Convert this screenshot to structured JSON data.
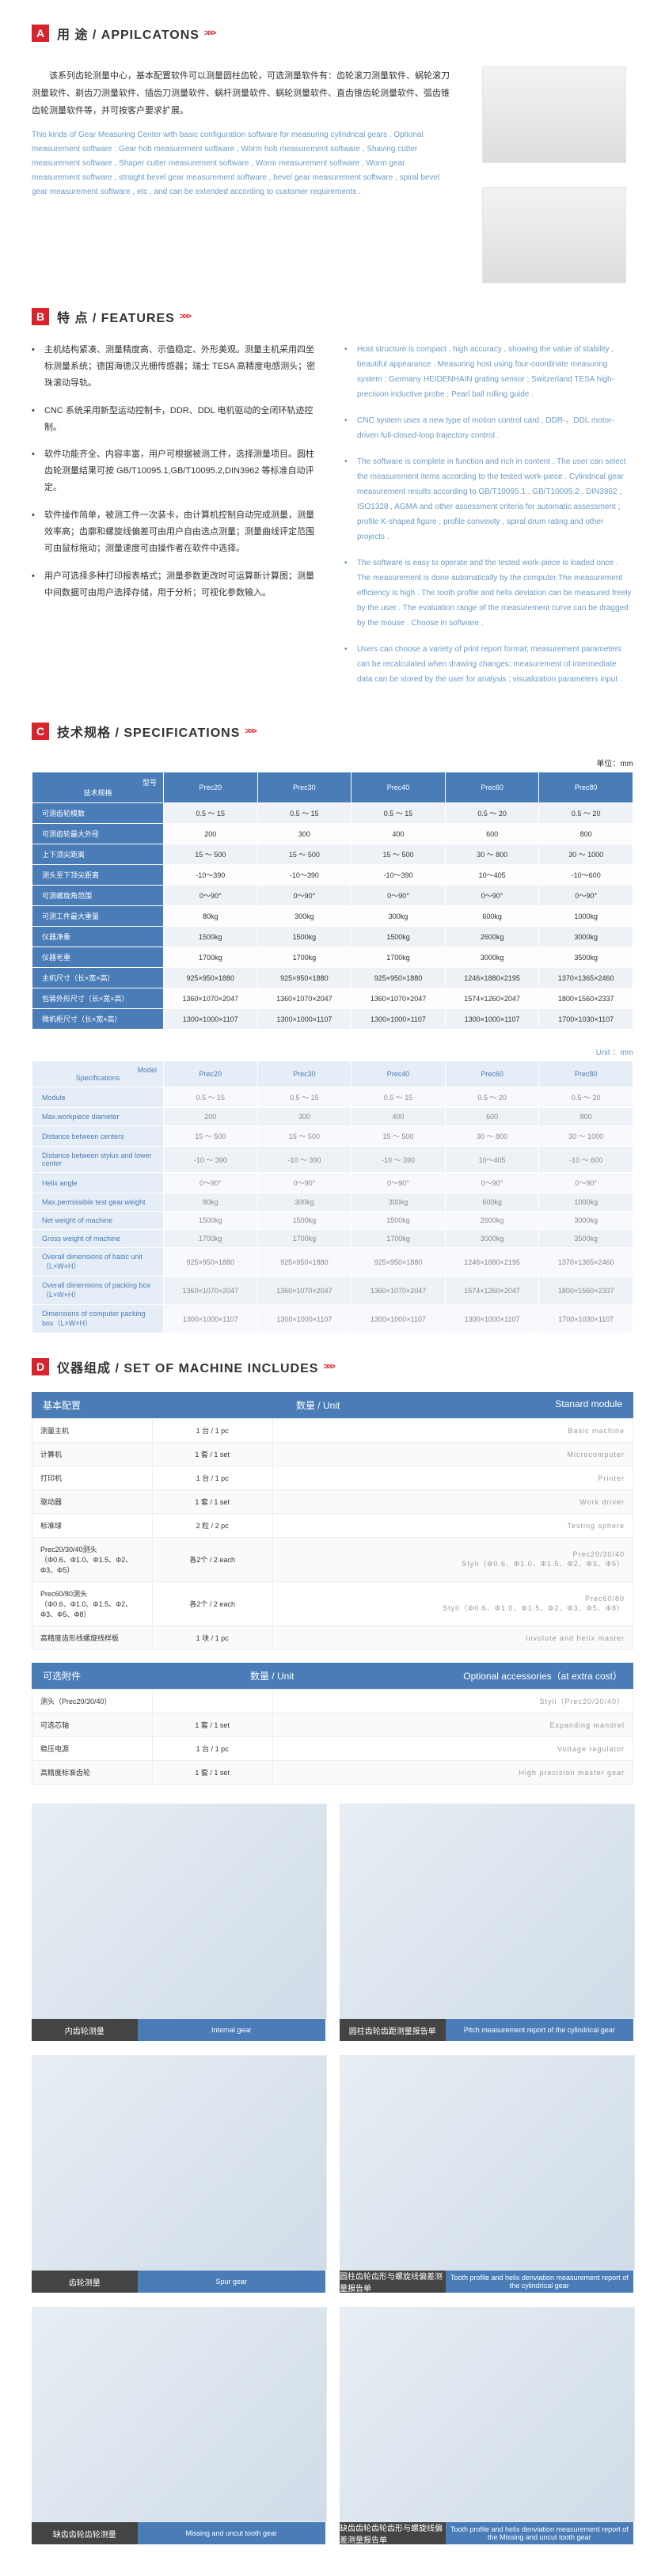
{
  "sectA": {
    "badge": "A",
    "title": "用 途 / APPILCATONS",
    "arr": ">>>"
  },
  "sectB": {
    "badge": "B",
    "title": "特 点 / FEATURES",
    "arr": ">>>"
  },
  "sectC": {
    "badge": "C",
    "title": "技术规格 / SPECIFICATIONS",
    "arr": ">>>"
  },
  "sectD": {
    "badge": "D",
    "title": "仪器组成 / SET OF MACHINE INCLUDES",
    "arr": ">>>"
  },
  "appCn": "该系列齿轮测量中心，基本配置软件可以测量圆柱齿轮，可选测量软件有：齿轮滚刀测量软件、蜗轮滚刀测量软件、剃齿刀测量软件、插齿刀测量软件、蜗杆测量软件、蜗轮测量软件、直齿锥齿轮测量软件、弧齿锥齿轮测量软件等，并可按客户要求扩展。",
  "appEn": "This kinds of Gear Measuring Center with basic configuration software for measuring cylindrical gears . Optional measurement software : Gear hob measurement software , Worm hob measurement software , Shaving cutter measurement software , Shaper cutter measurement software , Worm measurement software , Worm gear measurement software , straight bevel gear measurement software , bevel gear measurement software , spiral bevel gear measurement software , etc , and can be extended according to customer requirements .",
  "featCn": [
    "主机结构紧凑、测量精度高、示值稳定、外形美观。测量主机采用四坐标测量系统；德国海德汉光栅传感器；瑞士 TESA 高精度电感测头；密珠滚动导轨。",
    "CNC 系统采用新型运动控制卡，DDR、DDL 电机驱动的全闭环轨迹控制。",
    "软件功能齐全、内容丰富，用户可根据被测工件，选择测量项目。圆柱齿轮测量结果可按 GB/T10095.1,GB/T10095.2,DIN3962 等标准自动评定。",
    "软件操作简单，被测工件一次装卡，由计算机控制自动完成测量，测量效率高；齿廓和螺旋线偏差可由用户自由选点测量；测量曲线评定范围可由鼠标拖动；测量速度可由操作者在软件中选择。",
    "用户可选择多种打印报表格式；测量参数更改时可运算新计算图；测量中间数据可由用户选择存储，用于分析；可视化参数输入。"
  ],
  "featEn": [
    "Host structure is compact , high accuracy , showing the value of stability , beautiful appearance . Measuring host using four-coordinate measuring system ; Germany HEIDENHAIN grating sensor ; Switzerland TESA high-precision inductive probe ; Pearl ball rolling guide .",
    "CNC system uses a new type of motion control card , DDR-，DDL motor-driven full-closed-loop trajectory control .",
    "The software is complete in function and rich in content . The user can select the measurement items according to the tested work-piece . Cylindrical gear measurement results according to GB/T10095.1 , GB/T10095.2 , DIN3962 , ISO1328 , AGMA and other assessment criteria for automatic assessment ; profile K-shaped figure , profile convexity , spiral drum rating and other projects .",
    "The software is easy to operate and the tested work-piece is loaded once . The measurement is done automatically by the computer.The measurement efficiency is high . The tooth profile and helix deviation can be measured freely by the user . The evaluation range of the measurement curve can be dragged by the mouse . Choose in software .",
    "Users can choose a variety of print report format; measurement parameters can be recalculated when drawing changes; measurement of intermediate data can be stored by the user for analysis ; visualization parameters input ."
  ],
  "unitCn": "单位：mm",
  "unitEn": "Unit ：mm",
  "spec1": {
    "cornerCn": "技术规格",
    "cornerMod": "型号",
    "cols": [
      "Prec20",
      "Prec30",
      "Prec40",
      "Prec60",
      "Prec80"
    ],
    "rows": [
      {
        "h": "可测齿轮模数",
        "c": [
          "0.5 ～ 15",
          "0.5 ～ 15",
          "0.5 ～ 15",
          "0.5 ～ 20",
          "0.5 ～ 20"
        ]
      },
      {
        "h": "可测齿轮最大外径",
        "c": [
          "200",
          "300",
          "400",
          "600",
          "800"
        ]
      },
      {
        "h": "上下顶尖距离",
        "c": [
          "15 ～ 500",
          "15 ～ 500",
          "15 ～ 500",
          "30 ～ 800",
          "30 ～ 1000"
        ]
      },
      {
        "h": "测头至下顶尖距离",
        "c": [
          "-10～390",
          "-10～390",
          "-10～390",
          "10～405",
          "-10～600"
        ]
      },
      {
        "h": "可测螺旋角范围",
        "c": [
          "0～90°",
          "0～90°",
          "0～90°",
          "0～90°",
          "0～90°"
        ]
      },
      {
        "h": "可测工件最大重量",
        "c": [
          "80kg",
          "300kg",
          "300kg",
          "600kg",
          "1000kg"
        ]
      },
      {
        "h": "仪器净重",
        "c": [
          "1500kg",
          "1500kg",
          "1500kg",
          "2600kg",
          "3000kg"
        ]
      },
      {
        "h": "仪器毛重",
        "c": [
          "1700kg",
          "1700kg",
          "1700kg",
          "3000kg",
          "3500kg"
        ]
      },
      {
        "h": "主机尺寸（长×宽×高）",
        "c": [
          "925×950×1880",
          "925×950×1880",
          "925×950×1880",
          "1246×1880×2195",
          "1370×1365×2460"
        ]
      },
      {
        "h": "包装外形尺寸（长×宽×高）",
        "c": [
          "1360×1070×2047",
          "1360×1070×2047",
          "1360×1070×2047",
          "1574×1260×2047",
          "1800×1560×2337"
        ]
      },
      {
        "h": "微机柜尺寸（长×宽×高）",
        "c": [
          "1300×1000×1107",
          "1300×1000×1107",
          "1300×1000×1107",
          "1300×1000×1107",
          "1700×1030×1107"
        ]
      }
    ]
  },
  "spec2": {
    "cornerSpec": "Specifications",
    "cornerMod": "Model",
    "cols": [
      "Prec20",
      "Prec30",
      "Prec40",
      "Prec60",
      "Prec80"
    ],
    "rows": [
      {
        "h": "Module",
        "c": [
          "0.5 ～ 15",
          "0.5 ～ 15",
          "0.5 ～ 15",
          "0.5 ～ 20",
          "0.5 ～ 20"
        ]
      },
      {
        "h": "Max.workpiece diameter",
        "c": [
          "200",
          "300",
          "400",
          "600",
          "800"
        ]
      },
      {
        "h": "Distance between centers",
        "c": [
          "15 ～ 500",
          "15 ～ 500",
          "15 ～ 500",
          "30 ～ 800",
          "30 ～ 1000"
        ]
      },
      {
        "h": "Distance between stylus and lower center",
        "c": [
          "-10 ～ 390",
          "-10 ～ 390",
          "-10 ～ 390",
          "10～405",
          "-10 ～ 600"
        ]
      },
      {
        "h": "Helix angle",
        "c": [
          "0～90°",
          "0～90°",
          "0～90°",
          "0～90°",
          "0～90°"
        ]
      },
      {
        "h": "Max.permissible test gear.weight",
        "c": [
          "80kg",
          "300kg",
          "300kg",
          "600kg",
          "1000kg"
        ]
      },
      {
        "h": "Net weight of machine",
        "c": [
          "1500kg",
          "1500kg",
          "1500kg",
          "2600kg",
          "3000kg"
        ]
      },
      {
        "h": "Gross weight of machine",
        "c": [
          "1700kg",
          "1700kg",
          "1700kg",
          "3000kg",
          "3500kg"
        ]
      },
      {
        "h": "Overall dimensions of basic unit（L×W×H）",
        "c": [
          "925×950×1880",
          "925×950×1880",
          "925×950×1880",
          "1246×1880×2195",
          "1370×1365×2460"
        ]
      },
      {
        "h": "Overall dimensions of packing box （L×W×H）",
        "c": [
          "1360×1070×2047",
          "1360×1070×2047",
          "1360×1070×2047",
          "1574×1260×2047",
          "1800×1560×2337"
        ]
      },
      {
        "h": "Dimensions of computer packing box（L×W×H）",
        "c": [
          "1300×1000×1107",
          "1300×1000×1107",
          "1300×1000×1107",
          "1300×1000×1107",
          "1700×1030×1107"
        ]
      }
    ]
  },
  "mod1": {
    "head": [
      "基本配置",
      "数量 / Unit",
      "Stanard module"
    ],
    "rows": [
      [
        "测量主机",
        "1 台 / 1 pc",
        "Basic machine"
      ],
      [
        "计算机",
        "1 套 / 1 set",
        "Microcomputer"
      ],
      [
        "打印机",
        "1 台 / 1 pc",
        "Printer"
      ],
      [
        "驱动器",
        "1 套 / 1 set",
        "Work driver"
      ],
      [
        "标准球",
        "2 粒 / 2 pc",
        "Testing sphere"
      ]
    ],
    "rowA": {
      "cnL1": "Prec20/30/40测头",
      "cnL2": "（Φ0.6、Φ1.0、Φ1.5、Φ2、Φ3、Φ5）",
      "u": "各2个 / 2 each",
      "enL1": "Prec20/30/40",
      "enL2": "Styli（Φ0.6、Φ1.0、Φ1.5、Φ2、Φ3、Φ5）"
    },
    "rowB": {
      "cnL1": "Prec60/80测头",
      "cnL2": "（Φ0.6、Φ1.0、Φ1.5、Φ2、Φ3、Φ5、Φ8）",
      "u": "各2个 / 2 each",
      "enL1": "Prec60/80",
      "enL2": "Styli（Φ0.6、Φ1.0、Φ1.5、Φ2、Φ3、Φ5、Φ8）"
    },
    "rowC": [
      "高精度齿形线螺旋线样板",
      "1 块 / 1 pc",
      "Involute and helix master"
    ]
  },
  "mod2": {
    "head": [
      "可选附件",
      "数量 / Unit",
      "Optional accessories（at extra cost）"
    ],
    "rows": [
      [
        "测头（Prec20/30/40）",
        "",
        "Styli（Prec20/30/40）"
      ],
      [
        "可选芯轴",
        "1 套 / 1 set",
        "Expanding mandrel"
      ],
      [
        "稳压电源",
        "1 台 / 1 pc",
        "Voltage regulator"
      ],
      [
        "高精度标准齿轮",
        "1 套 / 1 set",
        "High precision master gear"
      ]
    ]
  },
  "gallery": [
    {
      "cn": "内齿轮测量",
      "en": "Internal gear"
    },
    {
      "cn": "圆柱齿轮齿距测量报告单",
      "en": "Pitch measurement report of the cylindrical gear"
    },
    {
      "cn": "齿轮测量",
      "en": "Spur gear"
    },
    {
      "cn": "圆柱齿轮齿形与螺旋线偏差测量报告单",
      "en": "Tooth profile and helix denviation measurement report of the cylindrical gear"
    },
    {
      "cn": "缺齿齿轮齿轮测量",
      "en": "Missing and uncut tooth gear"
    },
    {
      "cn": "缺齿齿轮齿轮齿形与螺旋线偏差测量报告单",
      "en": "Tooth profile and helix denviation measurement report of the Missing and uncut tooth gear"
    }
  ]
}
